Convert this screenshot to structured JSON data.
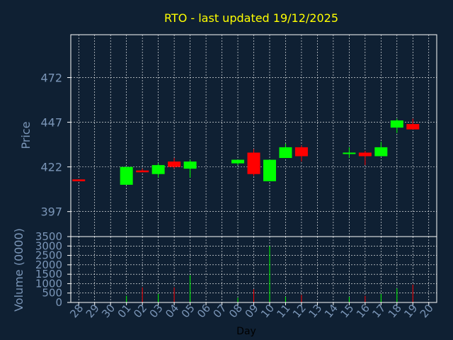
{
  "colors": {
    "background": "#0f2033",
    "title": "#ffff00",
    "axis_text": "#7b96b8",
    "grid": "#ffffff",
    "frame": "#ffffff",
    "up": "#00ff00",
    "down": "#ff0000",
    "day_label": "#000000"
  },
  "chart_data": [
    {
      "type": "candlestick",
      "title": "RTO - last updated 19/12/2025",
      "ylabel": "Price",
      "y_ticks": [
        397,
        422,
        447,
        472
      ],
      "ylim": [
        383,
        496
      ],
      "grid": true,
      "candles": [
        {
          "date": "28",
          "open": 415,
          "high": 415,
          "low": 414,
          "close": 414
        },
        {
          "date": "01",
          "open": 412,
          "high": 422,
          "low": 412,
          "close": 422
        },
        {
          "date": "02",
          "open": 420,
          "high": 421,
          "low": 419,
          "close": 419
        },
        {
          "date": "03",
          "open": 418,
          "high": 424,
          "low": 416,
          "close": 423
        },
        {
          "date": "04",
          "open": 425,
          "high": 427,
          "low": 421,
          "close": 422
        },
        {
          "date": "05",
          "open": 421,
          "high": 426,
          "low": 416,
          "close": 425
        },
        {
          "date": "08",
          "open": 424,
          "high": 426,
          "low": 423,
          "close": 426
        },
        {
          "date": "09",
          "open": 430,
          "high": 432,
          "low": 417,
          "close": 418
        },
        {
          "date": "10",
          "open": 414,
          "high": 426,
          "low": 414,
          "close": 426
        },
        {
          "date": "11",
          "open": 427,
          "high": 435,
          "low": 427,
          "close": 433
        },
        {
          "date": "12",
          "open": 433,
          "high": 434,
          "low": 425,
          "close": 428
        },
        {
          "date": "15",
          "open": 430,
          "high": 433,
          "low": 427,
          "close": 430
        },
        {
          "date": "16",
          "open": 430,
          "high": 431,
          "low": 423,
          "close": 428
        },
        {
          "date": "17",
          "open": 428,
          "high": 436,
          "low": 428,
          "close": 433
        },
        {
          "date": "18",
          "open": 444,
          "high": 449,
          "low": 441,
          "close": 448
        },
        {
          "date": "19",
          "open": 446,
          "high": 449,
          "low": 443,
          "close": 443
        }
      ]
    },
    {
      "type": "bar",
      "ylabel": "Volume (0000)",
      "xlabel": "Day",
      "categories": [
        "28",
        "29",
        "30",
        "01",
        "02",
        "03",
        "04",
        "05",
        "06",
        "07",
        "08",
        "09",
        "10",
        "11",
        "12",
        "13",
        "14",
        "15",
        "16",
        "17",
        "18",
        "19",
        "20"
      ],
      "y_ticks": [
        0,
        500,
        1000,
        1500,
        2000,
        2500,
        3000,
        3500
      ],
      "ylim": [
        0,
        3500
      ],
      "values": [
        0,
        0,
        0,
        350,
        800,
        450,
        800,
        1450,
        0,
        0,
        250,
        700,
        3000,
        300,
        400,
        0,
        0,
        300,
        350,
        450,
        750,
        950,
        0
      ],
      "direction": [
        "up",
        "up",
        "up",
        "up",
        "down",
        "up",
        "down",
        "up",
        "up",
        "up",
        "up",
        "down",
        "up",
        "up",
        "down",
        "up",
        "up",
        "up",
        "down",
        "up",
        "up",
        "down",
        "up"
      ]
    }
  ]
}
